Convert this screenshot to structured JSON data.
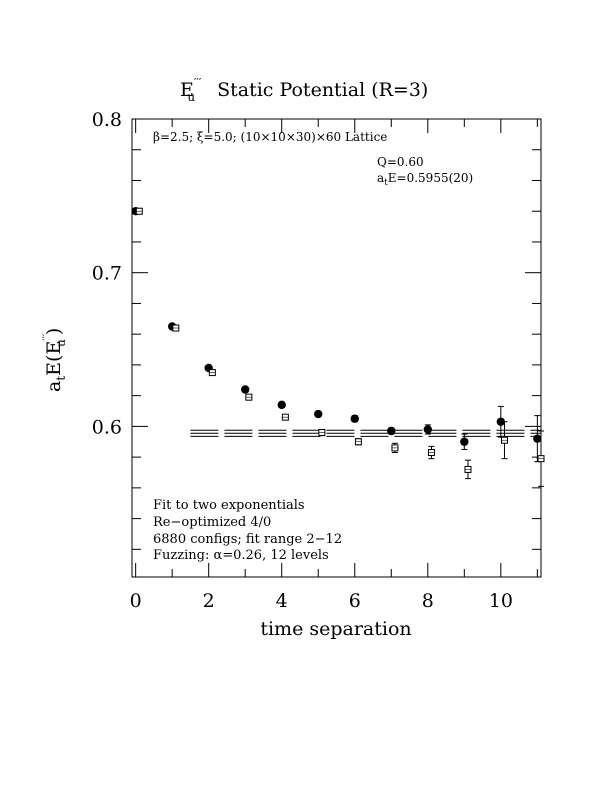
{
  "chart_data": {
    "type": "scatter",
    "title": {
      "main": "E",
      "main_sub": "u",
      "main_sup": "′′′",
      "rest": "Static Potential (R=3)"
    },
    "xlabel": "time separation",
    "ylabel": {
      "text": "a",
      "sub1": "t",
      "mid": "E(E",
      "sup": "′′′",
      "sub2": "u",
      "end": ")"
    },
    "xlim": [
      -0.1,
      11.1
    ],
    "ylim": [
      0.502,
      0.8
    ],
    "x_ticks": [
      0,
      2,
      4,
      6,
      8,
      10
    ],
    "x_tick_labels": [
      "0",
      "2",
      "4",
      "6",
      "8",
      "10"
    ],
    "y_ticks": [
      0.6,
      0.7,
      0.8
    ],
    "y_tick_labels": [
      "0.6",
      "0.7",
      "0.8"
    ],
    "annotations": {
      "lattice": "β=2.5; ξ=5.0; (10×10×30)×60 Lattice",
      "q": "Q=0.60",
      "energy": "a",
      "energy_sub": "t",
      "energy_rest": "E=0.5955(20)",
      "fit_lines": [
        "Fit to two exponentials",
        "Re−optimized 4/0",
        "6880 configs; fit range 2−12",
        "Fuzzing: α=0.26, 12 levels"
      ]
    },
    "series": [
      {
        "marker": "filled-circle",
        "points": [
          {
            "x": 0,
            "y": 0.74,
            "err": 0.001
          },
          {
            "x": 1,
            "y": 0.665,
            "err": 0.001
          },
          {
            "x": 2,
            "y": 0.638,
            "err": 0.001
          },
          {
            "x": 3,
            "y": 0.624,
            "err": 0.001
          },
          {
            "x": 4,
            "y": 0.614,
            "err": 0.0015
          },
          {
            "x": 5,
            "y": 0.608,
            "err": 0.0015
          },
          {
            "x": 6,
            "y": 0.605,
            "err": 0.002
          },
          {
            "x": 7,
            "y": 0.597,
            "err": 0.002
          },
          {
            "x": 8,
            "y": 0.598,
            "err": 0.003
          },
          {
            "x": 9,
            "y": 0.59,
            "err": 0.005
          },
          {
            "x": 10,
            "y": 0.603,
            "err": 0.01
          },
          {
            "x": 11,
            "y": 0.592,
            "err": 0.015
          }
        ]
      },
      {
        "marker": "open-square",
        "points": [
          {
            "x": 0.1,
            "y": 0.74,
            "err": 0.001
          },
          {
            "x": 1.1,
            "y": 0.664,
            "err": 0.001
          },
          {
            "x": 2.1,
            "y": 0.635,
            "err": 0.001
          },
          {
            "x": 3.1,
            "y": 0.619,
            "err": 0.0015
          },
          {
            "x": 4.1,
            "y": 0.606,
            "err": 0.0015
          },
          {
            "x": 5.1,
            "y": 0.596,
            "err": 0.002
          },
          {
            "x": 6.1,
            "y": 0.59,
            "err": 0.002
          },
          {
            "x": 7.1,
            "y": 0.586,
            "err": 0.003
          },
          {
            "x": 8.1,
            "y": 0.583,
            "err": 0.004
          },
          {
            "x": 9.1,
            "y": 0.572,
            "err": 0.006
          },
          {
            "x": 10.1,
            "y": 0.591,
            "err": 0.012
          },
          {
            "x": 11.1,
            "y": 0.579,
            "err": 0.018
          }
        ]
      }
    ],
    "fit_band": {
      "x_range": [
        1.5,
        11.1
      ],
      "center": 0.5955,
      "error": 0.002
    }
  }
}
